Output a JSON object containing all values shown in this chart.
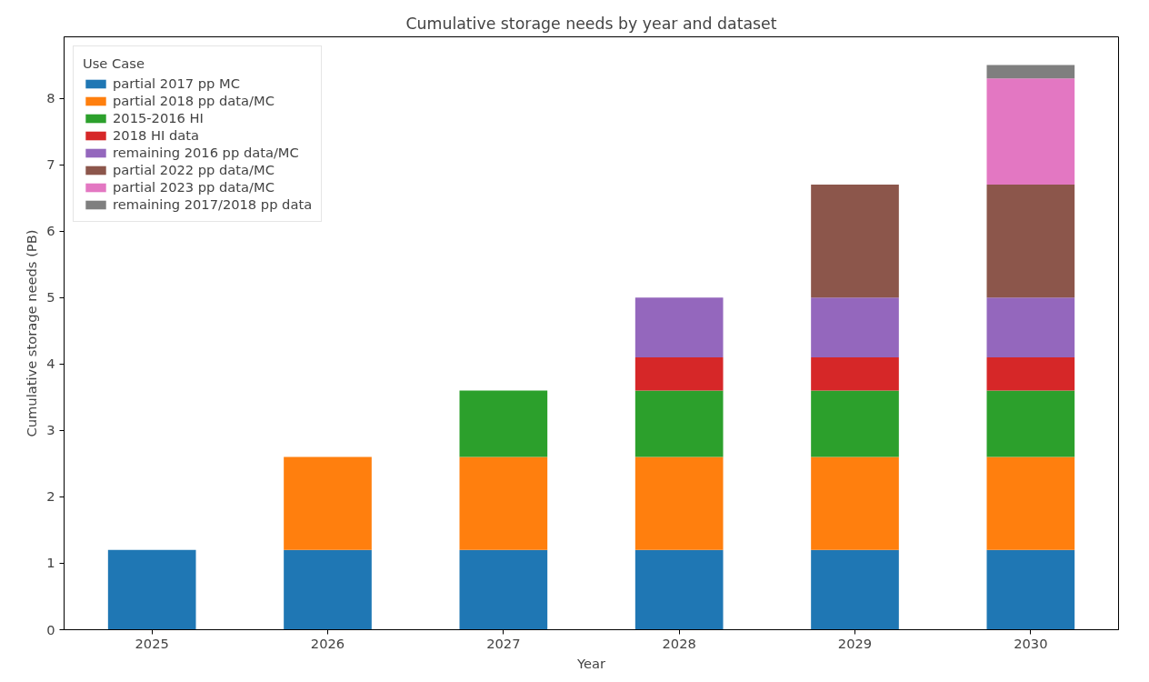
{
  "chart_data": {
    "type": "bar",
    "title": "Cumulative storage needs by year and dataset",
    "xlabel": "Year",
    "ylabel": "Cumulative storage needs (PB)",
    "legend_title": "Use Case",
    "categories": [
      "2025",
      "2026",
      "2027",
      "2028",
      "2029",
      "2030"
    ],
    "stacked": true,
    "ylim": [
      0,
      8.925
    ],
    "yticks": [
      0,
      1,
      2,
      3,
      4,
      5,
      6,
      7,
      8
    ],
    "grid": false,
    "legend": "top left",
    "series": [
      {
        "name": "partial 2017 pp MC",
        "color": "#1f77b4",
        "values": [
          1.2,
          1.2,
          1.2,
          1.2,
          1.2,
          1.2
        ]
      },
      {
        "name": "partial 2018 pp data/MC",
        "color": "#ff7f0e",
        "values": [
          null,
          1.4,
          1.4,
          1.4,
          1.4,
          1.4
        ]
      },
      {
        "name": "2015-2016 HI",
        "color": "#2ca02c",
        "values": [
          null,
          null,
          1.0,
          1.0,
          1.0,
          1.0
        ]
      },
      {
        "name": "2018 HI data",
        "color": "#d62728",
        "values": [
          null,
          null,
          null,
          0.5,
          0.5,
          0.5
        ]
      },
      {
        "name": "remaining 2016 pp data/MC",
        "color": "#9467bd",
        "values": [
          null,
          null,
          null,
          0.9,
          0.9,
          0.9
        ]
      },
      {
        "name": "partial 2022 pp data/MC",
        "color": "#8c564b",
        "values": [
          null,
          null,
          null,
          null,
          1.7,
          1.7
        ]
      },
      {
        "name": "partial 2023 pp data/MC",
        "color": "#e377c2",
        "values": [
          null,
          null,
          null,
          null,
          null,
          1.6
        ]
      },
      {
        "name": "remaining 2017/2018 pp data",
        "color": "#7f7f7f",
        "values": [
          null,
          null,
          null,
          null,
          null,
          0.2
        ]
      }
    ]
  }
}
